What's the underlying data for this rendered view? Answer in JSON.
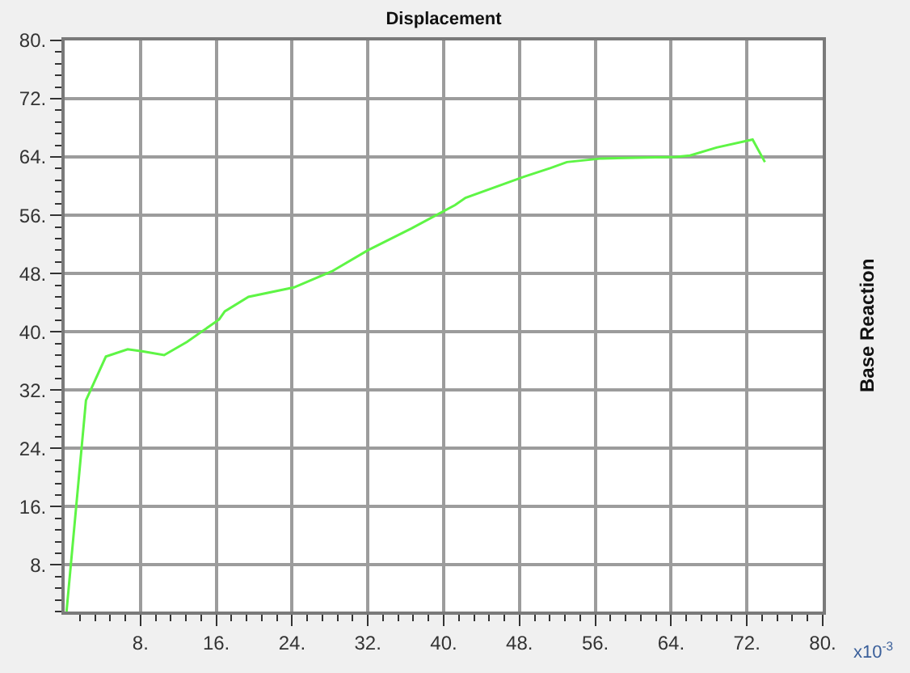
{
  "chart_data": {
    "type": "line",
    "title": "Displacement",
    "ylabel": "Base Reaction",
    "annotations": [
      "x10$^{-3}$"
    ],
    "x": [
      0.2,
      2.25,
      4.35,
      6.65,
      8.3,
      10.5,
      12.9,
      16.3,
      16.9,
      19.4,
      24.2,
      28.2,
      32.0,
      36.6,
      41.2,
      42.3,
      48.5,
      51.3,
      53.0,
      56.7,
      64.5,
      66.0,
      68.8,
      72.6,
      73.9
    ],
    "values": [
      1.6,
      30.6,
      36.6,
      37.6,
      37.3,
      36.8,
      38.6,
      41.7,
      42.8,
      44.8,
      46.1,
      48.3,
      51.2,
      54.2,
      57.4,
      58.4,
      61.3,
      62.5,
      63.3,
      63.8,
      64.0,
      64.2,
      65.3,
      66.4,
      63.3
    ],
    "color": "#5ef545",
    "xlim": [
      0,
      80
    ],
    "ylim": [
      1.6,
      80
    ],
    "grid": true,
    "xticks": [
      {
        "value": 1.6,
        "label": null
      },
      {
        "value": 3.2,
        "label": null
      },
      {
        "value": 4.8,
        "label": null
      },
      {
        "value": 6.4,
        "label": null
      },
      {
        "value": 8,
        "label": "8."
      },
      {
        "value": 9.6,
        "label": null
      },
      {
        "value": 11.2,
        "label": null
      },
      {
        "value": 12.8,
        "label": null
      },
      {
        "value": 14.4,
        "label": null
      },
      {
        "value": 16,
        "label": "16."
      },
      {
        "value": 17.6,
        "label": null
      },
      {
        "value": 19.2,
        "label": null
      },
      {
        "value": 20.8,
        "label": null
      },
      {
        "value": 22.4,
        "label": null
      },
      {
        "value": 24,
        "label": "24."
      },
      {
        "value": 25.6,
        "label": null
      },
      {
        "value": 27.2,
        "label": null
      },
      {
        "value": 28.8,
        "label": null
      },
      {
        "value": 30.4,
        "label": null
      },
      {
        "value": 32,
        "label": "32."
      },
      {
        "value": 33.6,
        "label": null
      },
      {
        "value": 35.2,
        "label": null
      },
      {
        "value": 36.8,
        "label": null
      },
      {
        "value": 38.4,
        "label": null
      },
      {
        "value": 40,
        "label": "40."
      },
      {
        "value": 41.6,
        "label": null
      },
      {
        "value": 43.2,
        "label": null
      },
      {
        "value": 44.8,
        "label": null
      },
      {
        "value": 46.4,
        "label": null
      },
      {
        "value": 48,
        "label": "48."
      },
      {
        "value": 49.6,
        "label": null
      },
      {
        "value": 51.2,
        "label": null
      },
      {
        "value": 52.8,
        "label": null
      },
      {
        "value": 54.4,
        "label": null
      },
      {
        "value": 56,
        "label": "56."
      },
      {
        "value": 57.6,
        "label": null
      },
      {
        "value": 59.2,
        "label": null
      },
      {
        "value": 60.8,
        "label": null
      },
      {
        "value": 62.4,
        "label": null
      },
      {
        "value": 64,
        "label": "64."
      },
      {
        "value": 65.6,
        "label": null
      },
      {
        "value": 67.2,
        "label": null
      },
      {
        "value": 68.8,
        "label": null
      },
      {
        "value": 70.4,
        "label": null
      },
      {
        "value": 72,
        "label": "72."
      },
      {
        "value": 73.6,
        "label": null
      },
      {
        "value": 75.2,
        "label": null
      },
      {
        "value": 76.8,
        "label": null
      },
      {
        "value": 78.4,
        "label": null
      },
      {
        "value": 80,
        "label": "80."
      }
    ],
    "yticks": [
      {
        "value": 1.6,
        "label": null
      },
      {
        "value": 3.2,
        "label": null
      },
      {
        "value": 4.8,
        "label": null
      },
      {
        "value": 6.4,
        "label": null
      },
      {
        "value": 8,
        "label": "8."
      },
      {
        "value": 9.6,
        "label": null
      },
      {
        "value": 11.2,
        "label": null
      },
      {
        "value": 12.8,
        "label": null
      },
      {
        "value": 14.4,
        "label": null
      },
      {
        "value": 16,
        "label": "16."
      },
      {
        "value": 17.6,
        "label": null
      },
      {
        "value": 19.2,
        "label": null
      },
      {
        "value": 20.8,
        "label": null
      },
      {
        "value": 22.4,
        "label": null
      },
      {
        "value": 24,
        "label": "24."
      },
      {
        "value": 25.6,
        "label": null
      },
      {
        "value": 27.2,
        "label": null
      },
      {
        "value": 28.8,
        "label": null
      },
      {
        "value": 30.4,
        "label": null
      },
      {
        "value": 32,
        "label": "32."
      },
      {
        "value": 33.6,
        "label": null
      },
      {
        "value": 35.2,
        "label": null
      },
      {
        "value": 36.8,
        "label": null
      },
      {
        "value": 38.4,
        "label": null
      },
      {
        "value": 40,
        "label": "40."
      },
      {
        "value": 41.6,
        "label": null
      },
      {
        "value": 43.2,
        "label": null
      },
      {
        "value": 44.8,
        "label": null
      },
      {
        "value": 46.4,
        "label": null
      },
      {
        "value": 48,
        "label": "48."
      },
      {
        "value": 49.6,
        "label": null
      },
      {
        "value": 51.2,
        "label": null
      },
      {
        "value": 52.8,
        "label": null
      },
      {
        "value": 54.4,
        "label": null
      },
      {
        "value": 56,
        "label": "56."
      },
      {
        "value": 57.6,
        "label": null
      },
      {
        "value": 59.2,
        "label": null
      },
      {
        "value": 60.8,
        "label": null
      },
      {
        "value": 62.4,
        "label": null
      },
      {
        "value": 64,
        "label": "64."
      },
      {
        "value": 65.6,
        "label": null
      },
      {
        "value": 67.2,
        "label": null
      },
      {
        "value": 68.8,
        "label": null
      },
      {
        "value": 70.4,
        "label": null
      },
      {
        "value": 72,
        "label": "72."
      },
      {
        "value": 73.6,
        "label": null
      },
      {
        "value": 75.2,
        "label": null
      },
      {
        "value": 76.8,
        "label": null
      },
      {
        "value": 78.4,
        "label": null
      },
      {
        "value": 80,
        "label": "80."
      }
    ]
  }
}
